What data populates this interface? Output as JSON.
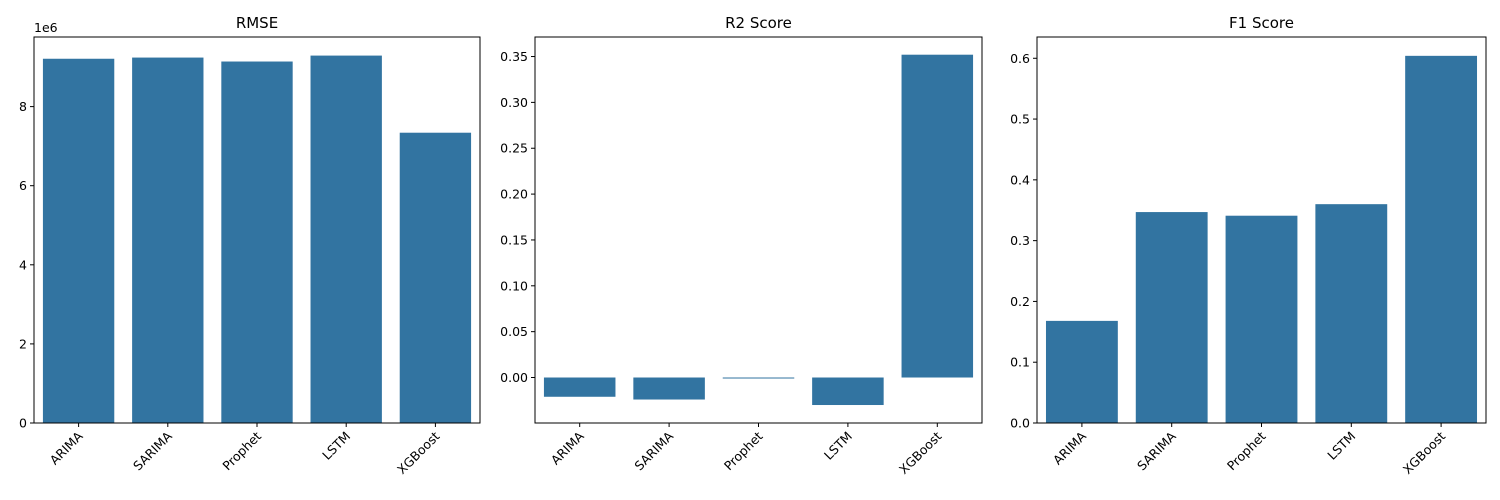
{
  "chart_data": [
    {
      "type": "bar",
      "title": "RMSE",
      "categories": [
        "ARIMA",
        "SARIMA",
        "Prophet",
        "LSTM",
        "XGBoost"
      ],
      "values": [
        9210000,
        9240000,
        9140000,
        9290000,
        7340000
      ],
      "offset_text": "1e6",
      "ylim": [
        0,
        9760000
      ],
      "yticks": [
        0,
        2000000,
        4000000,
        6000000,
        8000000
      ],
      "ytick_labels": [
        "0",
        "2",
        "4",
        "6",
        "8"
      ],
      "xlabel": "",
      "ylabel": ""
    },
    {
      "type": "bar",
      "title": "R2 Score",
      "categories": [
        "ARIMA",
        "SARIMA",
        "Prophet",
        "LSTM",
        "XGBoost"
      ],
      "values": [
        -0.021,
        -0.024,
        -0.001,
        -0.03,
        0.352
      ],
      "ylim": [
        -0.0496,
        0.3713
      ],
      "yticks": [
        0.0,
        0.05,
        0.1,
        0.15,
        0.2,
        0.25,
        0.3,
        0.35
      ],
      "ytick_labels": [
        "0.00",
        "0.05",
        "0.10",
        "0.15",
        "0.20",
        "0.25",
        "0.30",
        "0.35"
      ],
      "xlabel": "",
      "ylabel": ""
    },
    {
      "type": "bar",
      "title": "F1 Score",
      "categories": [
        "ARIMA",
        "SARIMA",
        "Prophet",
        "LSTM",
        "XGBoost"
      ],
      "values": [
        0.168,
        0.347,
        0.341,
        0.36,
        0.604
      ],
      "ylim": [
        0,
        0.635
      ],
      "yticks": [
        0.0,
        0.1,
        0.2,
        0.3,
        0.4,
        0.5,
        0.6
      ],
      "ytick_labels": [
        "0.0",
        "0.1",
        "0.2",
        "0.3",
        "0.4",
        "0.5",
        "0.6"
      ],
      "xlabel": "",
      "ylabel": ""
    }
  ],
  "colors": {
    "bar": "#3274a1",
    "axis": "#000000",
    "background": "#ffffff"
  }
}
